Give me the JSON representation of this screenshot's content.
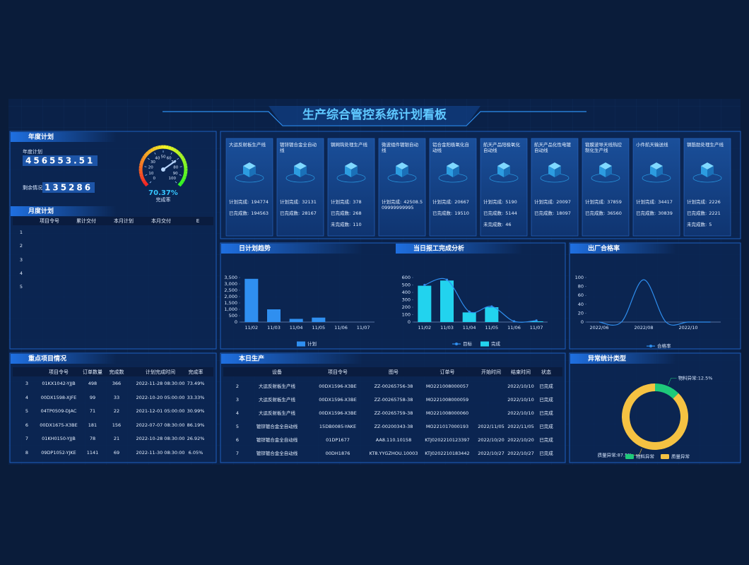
{
  "header": {
    "title": "生产综合管控系统计划看板"
  },
  "annual": {
    "title": "年度计划",
    "plan_label": "年度计划",
    "plan_value": "456553.51",
    "remain_label": "剩余情况",
    "remain_value": "135286",
    "gauge": {
      "type": "gauge",
      "value": 70.37,
      "value_label": "70.37%",
      "label": "完成率",
      "lim": [
        0,
        100
      ],
      "ticks": [
        0,
        10,
        20,
        30,
        40,
        50,
        60,
        70,
        80,
        90,
        100
      ]
    }
  },
  "monthly": {
    "title": "月度计划",
    "columns": [
      "项目令号",
      "累计交付",
      "本月计划",
      "本月交付",
      "E"
    ],
    "rows": [
      [
        "1"
      ],
      [
        "2"
      ],
      [
        "3"
      ],
      [
        "4"
      ],
      [
        "5"
      ]
    ]
  },
  "lines": [
    {
      "name": "大运反射板生产线",
      "items": [
        {
          "label": "计划完成:",
          "value": "194774"
        },
        {
          "label": "已完成数:",
          "value": "194563"
        }
      ]
    },
    {
      "name": "镀锌镀合金全自动线",
      "items": [
        {
          "label": "计划完成:",
          "value": "32131"
        },
        {
          "label": "已完成数:",
          "value": "28167"
        }
      ]
    },
    {
      "name": "钢网钩处理生产线",
      "items": [
        {
          "label": "计划完成:",
          "value": "378"
        },
        {
          "label": "已完成数:",
          "value": "268"
        },
        {
          "label": "未完成数:",
          "value": "110"
        }
      ]
    },
    {
      "name": "微波组件镀银自动线",
      "items": [
        {
          "label": "计划完成:",
          "value": "42508.509999999995"
        }
      ]
    },
    {
      "name": "铝合金阳极氧化自动线",
      "items": [
        {
          "label": "计划完成:",
          "value": "20667"
        },
        {
          "label": "已完成数:",
          "value": "19510"
        }
      ]
    },
    {
      "name": "航天产品阳极氧化自动线",
      "items": [
        {
          "label": "计划完成:",
          "value": "5190"
        },
        {
          "label": "已完成数:",
          "value": "5144"
        },
        {
          "label": "未完成数:",
          "value": "46"
        }
      ]
    },
    {
      "name": "航天产品化性电镀自动线",
      "items": [
        {
          "label": "计划完成:",
          "value": "20097"
        },
        {
          "label": "已完成数:",
          "value": "18097"
        }
      ]
    },
    {
      "name": "锻膜波导天线热控制化生产线",
      "items": [
        {
          "label": "计划完成:",
          "value": "37859"
        },
        {
          "label": "已完成数:",
          "value": "36560"
        }
      ]
    },
    {
      "name": "小件航天输送线",
      "items": [
        {
          "label": "计划完成:",
          "value": "34417"
        },
        {
          "label": "已完成数:",
          "value": "30839"
        }
      ]
    },
    {
      "name": "钢筋肋处理生产线",
      "items": [
        {
          "label": "计划完成:",
          "value": "2226"
        },
        {
          "label": "已完成数:",
          "value": "2221"
        },
        {
          "label": "未完成数:",
          "value": "5"
        }
      ]
    }
  ],
  "daily_trend": {
    "type": "bar",
    "title": "日计划趋势",
    "categories": [
      "11/02",
      "11/03",
      "11/04",
      "11/05",
      "11/06",
      "11/07"
    ],
    "series": [
      {
        "name": "计划",
        "color": "#2f8ff0",
        "values": [
          3400,
          1000,
          250,
          350,
          0,
          0
        ]
      }
    ],
    "ylim": [
      0,
      3500
    ],
    "yticks": [
      0,
      500,
      {
        "value": 1000,
        "label": "1,000"
      },
      {
        "value": 1500,
        "label": "1,500"
      },
      {
        "value": 2000,
        "label": "2,000"
      },
      {
        "value": 2500,
        "label": "2,500"
      },
      {
        "value": 3000,
        "label": "3,000"
      },
      {
        "value": 3500,
        "label": "3,500"
      }
    ]
  },
  "report": {
    "type": "bar",
    "title": "当日报工完成分析",
    "categories": [
      "11/02",
      "11/03",
      "11/04",
      "11/05",
      "11/06",
      "11/07"
    ],
    "series": [
      {
        "name": "目标",
        "type": "line",
        "color": "#2f8ff0",
        "markers": true,
        "values": [
          500,
          570,
          140,
          210,
          10,
          20
        ]
      },
      {
        "name": "完成",
        "type": "bar",
        "color": "#22d3ee",
        "values": [
          490,
          560,
          130,
          200,
          0,
          10
        ]
      }
    ],
    "ylim": [
      0,
      600
    ],
    "yticks": [
      0,
      100,
      200,
      300,
      400,
      500,
      600
    ]
  },
  "pass_rate": {
    "type": "line",
    "title": "出厂合格率",
    "categories": [
      "2022/06",
      null,
      "2022/08",
      null,
      "2022/10",
      null
    ],
    "series": [
      {
        "name": "合格率",
        "color": "#2f8ff0",
        "values": [
          0,
          0,
          95,
          0,
          0,
          0
        ]
      }
    ],
    "ylim": [
      0,
      100
    ],
    "yticks": [
      0,
      20,
      40,
      60,
      80,
      100
    ]
  },
  "key_projects": {
    "title": "重点项目情况",
    "columns": [
      "项目令号",
      "订单数量",
      "完成数",
      "计划完成时间",
      "完成率"
    ],
    "rows": [
      [
        "3",
        "01KX1042-YJJB",
        "498",
        "366",
        "2022-11-28 08:30:00",
        "73.49%"
      ],
      [
        "4",
        "00DX1598-XJFE",
        "99",
        "33",
        "2022-10-20 05:00:00",
        "33.33%"
      ],
      [
        "5",
        "04TP0509-DJAC",
        "71",
        "22",
        "2021-12-01 05:00:00",
        "30.99%"
      ],
      [
        "6",
        "00DX1675-X3BE",
        "181",
        "156",
        "2022-07-07 08:30:00",
        "86.19%"
      ],
      [
        "7",
        "01KH0150-YJJB",
        "78",
        "21",
        "2022-10-28 08:30:00",
        "26.92%"
      ],
      [
        "8",
        "09DP1052-YJKE",
        "1141",
        "69",
        "2022-11-30 08:30:00",
        "6.05%"
      ]
    ]
  },
  "today": {
    "title": "本日生产",
    "columns": [
      "设备",
      "项目令号",
      "图号",
      "订单号",
      "开始时间",
      "结束时间",
      "状态"
    ],
    "rows": [
      [
        "2",
        "大运反射板生产线",
        "00DX1596-X3BE",
        "ZZ-00265756-38",
        "MO221008000057",
        null,
        "2022/10/10",
        "已完成"
      ],
      [
        "3",
        "大运反射板生产线",
        "00DX1596-X3BE",
        "ZZ-00265758-38",
        "MO221008000059",
        null,
        "2022/10/10",
        "已完成"
      ],
      [
        "4",
        "大运反射板生产线",
        "00DX1596-X3BE",
        "ZZ-00265759-38",
        "MO221008000060",
        null,
        "2022/10/10",
        "已完成"
      ],
      [
        "5",
        "镀锌镀合金全自动线",
        "15DB0085-YAKE",
        "ZZ-00200343-38",
        "MO221017000193",
        "2022/11/05",
        "2022/11/05",
        "已完成"
      ],
      [
        "6",
        "镀锌镀合金全自动线",
        "01DP1677",
        "AA8.110.10158",
        "KTJ0202210123397",
        "2022/10/20",
        "2022/10/20",
        "已完成"
      ],
      [
        "7",
        "镀锌镀合金全自动线",
        "00DH1876",
        "KT8.YYGZHOU.10003",
        "KTJ0202210183442",
        "2022/10/27",
        "2022/10/27",
        "已完成"
      ]
    ]
  },
  "anomaly": {
    "type": "pie",
    "title": "异常统计类型",
    "categories": [
      "物料异常",
      "质量异常"
    ],
    "values": [
      12.5,
      87.5
    ],
    "value_labels": [
      "物料异常:12.5%",
      "质量异常:87.5%"
    ],
    "colors": [
      "#1ec97a",
      "#f5c242"
    ]
  }
}
